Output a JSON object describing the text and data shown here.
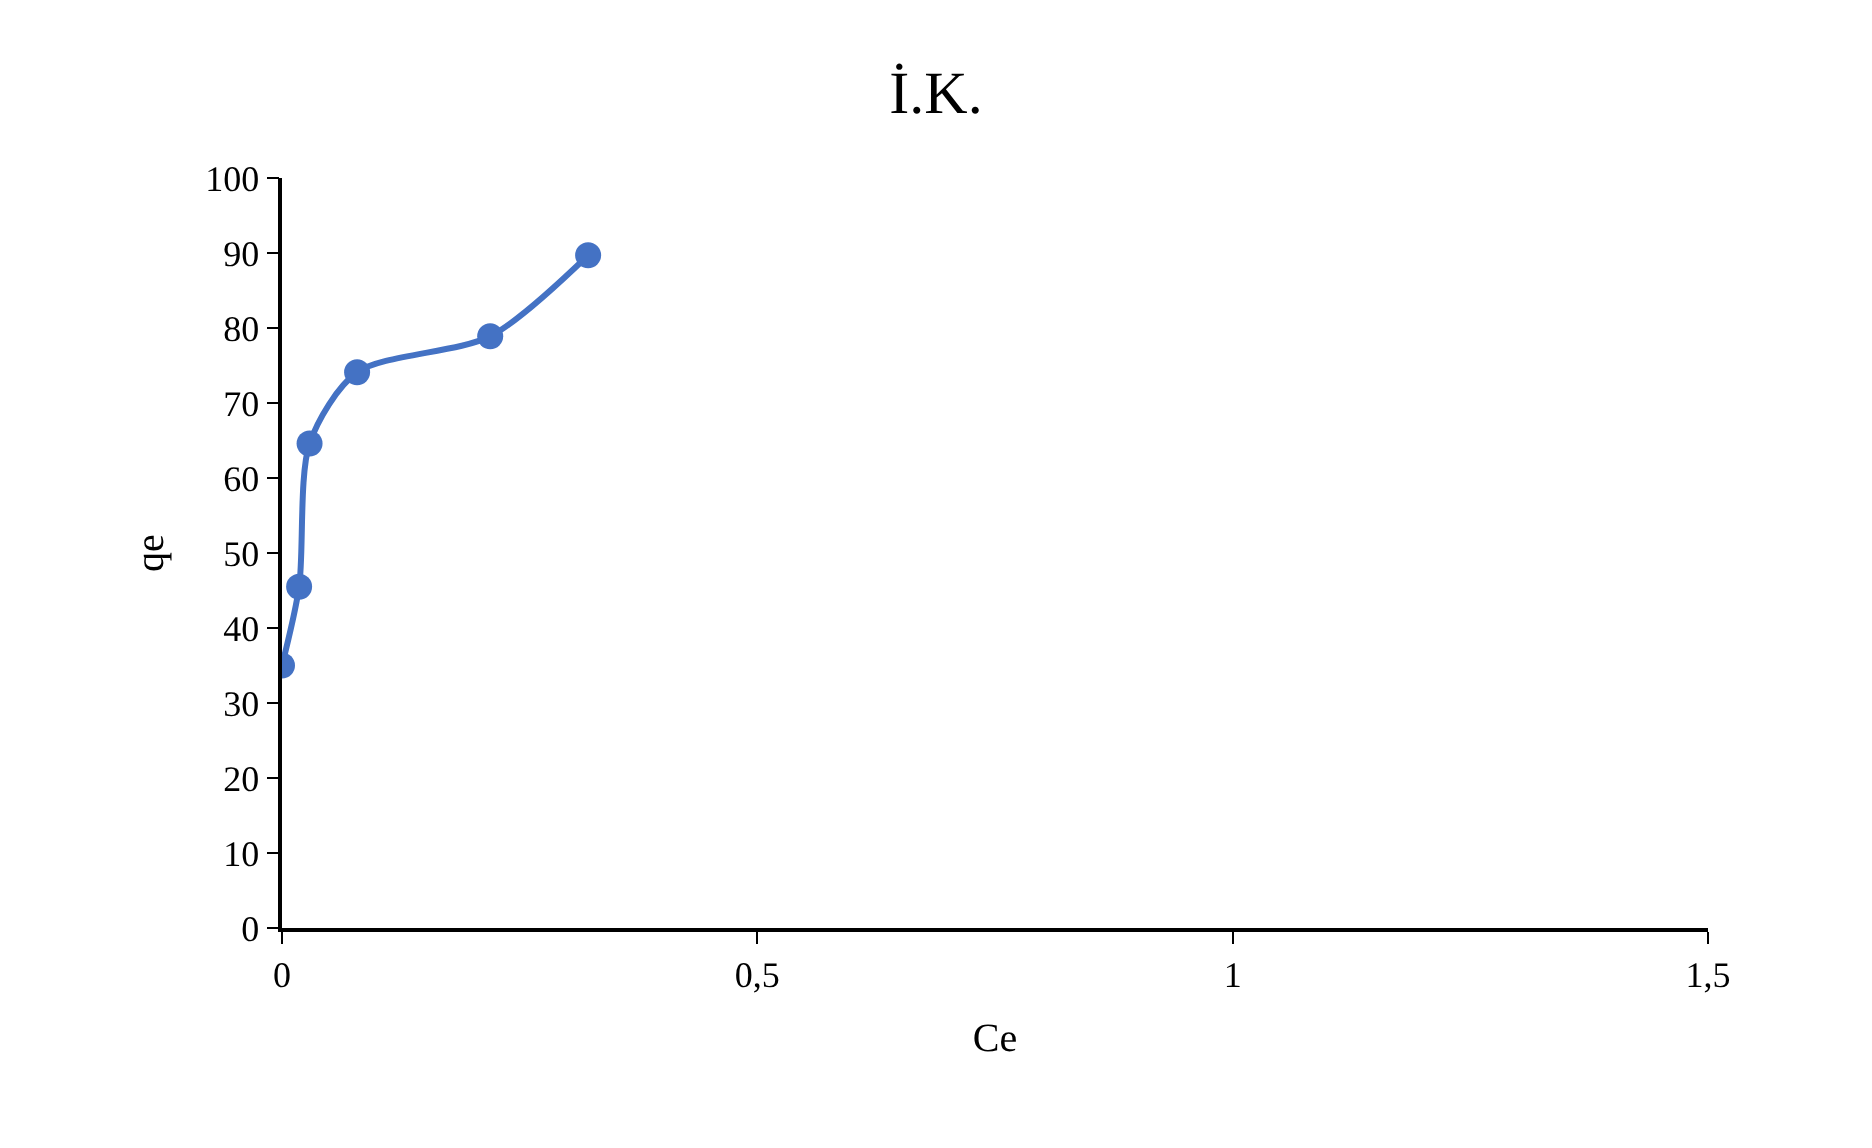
{
  "chart_data": {
    "type": "line",
    "title": "İ.K.",
    "xlabel": "Ce",
    "ylabel": "qe",
    "x": [
      0,
      0.018,
      0.029,
      0.079,
      0.219,
      0.322
    ],
    "series": [
      {
        "color": "#4472c4",
        "values": [
          35.0,
          45.5,
          64.6,
          74.1,
          78.9,
          89.7
        ]
      }
    ],
    "xlim": [
      0,
      1.5
    ],
    "xticks": [
      0,
      {
        "value": 0.5,
        "label": "0,5"
      },
      1,
      {
        "value": 1.5,
        "label": "1,5"
      }
    ],
    "ylim": [
      0,
      100
    ],
    "yticks": [
      0,
      10,
      20,
      30,
      40,
      50,
      60,
      70,
      80,
      90,
      100
    ],
    "marker": "circle",
    "line_style": "solid",
    "grid": false
  }
}
